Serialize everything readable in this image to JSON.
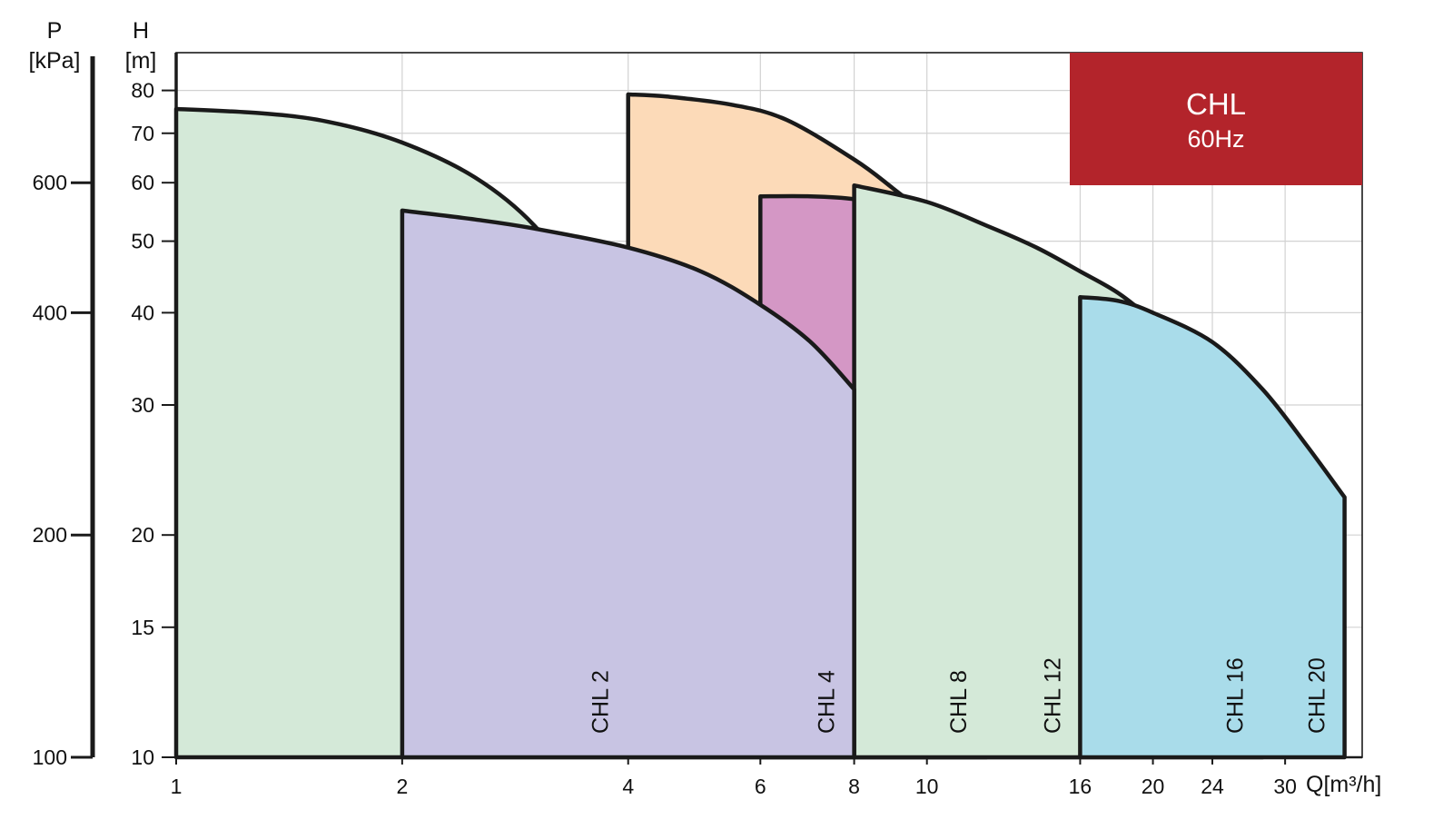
{
  "badge": {
    "title": "CHL",
    "subtitle": "60Hz",
    "color": "#b3242b"
  },
  "chart_data": {
    "type": "area",
    "x_scale": "log",
    "y_scale": "log",
    "xlabel": "Q[m³/h]",
    "ylabel": "H\n[m]",
    "ylabel_secondary": "P\n[kPa]",
    "x_ticks": [
      "1",
      "2",
      "4",
      "6",
      "8",
      "10",
      "16",
      "20",
      "24",
      "30"
    ],
    "y_ticks": [
      "10",
      "15",
      "20",
      "30",
      "40",
      "50",
      "60",
      "70",
      "80"
    ],
    "p_ticks": [
      "100",
      "200",
      "400",
      "600"
    ],
    "xlim": [
      1,
      38
    ],
    "ylim": [
      10,
      90
    ],
    "grid": true,
    "series": [
      {
        "name": "CHL 2",
        "color": "#d4e9d8",
        "q_min": 1,
        "q_max": 4,
        "curve": [
          [
            1,
            75.5
          ],
          [
            1.3,
            74.5
          ],
          [
            1.6,
            72.5
          ],
          [
            2,
            68
          ],
          [
            2.5,
            61
          ],
          [
            3,
            52.5
          ],
          [
            3.5,
            42.5
          ],
          [
            4,
            35.5
          ]
        ]
      },
      {
        "name": "CHL 4",
        "color": "#c8c4e3",
        "q_min": 2,
        "q_max": 8,
        "curve": [
          [
            2,
            55
          ],
          [
            2.5,
            53.5
          ],
          [
            3,
            52
          ],
          [
            4,
            49
          ],
          [
            5,
            45.5
          ],
          [
            6,
            41
          ],
          [
            7,
            36.5
          ],
          [
            8,
            31.5
          ]
        ]
      },
      {
        "name": "CHL 8",
        "color": "#fcdab8",
        "q_min": 4,
        "q_max": 12,
        "curve": [
          [
            4,
            79
          ],
          [
            4.5,
            78.5
          ],
          [
            5.5,
            76.5
          ],
          [
            6.5,
            73
          ],
          [
            8,
            64.5
          ],
          [
            9,
            59
          ],
          [
            10,
            54
          ],
          [
            11,
            48
          ],
          [
            12,
            43.5
          ]
        ]
      },
      {
        "name": "CHL 12",
        "color": "#d497c5",
        "q_min": 6,
        "q_max": 16,
        "curve": [
          [
            6,
            57.5
          ],
          [
            7,
            57.5
          ],
          [
            8,
            57
          ],
          [
            9,
            55.5
          ],
          [
            10,
            54
          ],
          [
            12,
            50
          ],
          [
            14,
            46
          ],
          [
            16,
            43
          ]
        ]
      },
      {
        "name": "CHL 16",
        "color": "#d4e9d8",
        "q_min": 8,
        "q_max": 28,
        "curve": [
          [
            8,
            59.5
          ],
          [
            10,
            56.5
          ],
          [
            12,
            52.5
          ],
          [
            14,
            49
          ],
          [
            16,
            45.5
          ],
          [
            18,
            42.5
          ],
          [
            20,
            39
          ],
          [
            22,
            35.5
          ],
          [
            24,
            32
          ],
          [
            26,
            28.5
          ],
          [
            28,
            25.5
          ]
        ]
      },
      {
        "name": "CHL 20",
        "color": "#a9dcea",
        "q_min": 16,
        "q_max": 36,
        "curve": [
          [
            16,
            42
          ],
          [
            18,
            41.5
          ],
          [
            20,
            40
          ],
          [
            24,
            36.5
          ],
          [
            28,
            31.5
          ],
          [
            32,
            26.5
          ],
          [
            36,
            22.5
          ]
        ]
      }
    ]
  }
}
